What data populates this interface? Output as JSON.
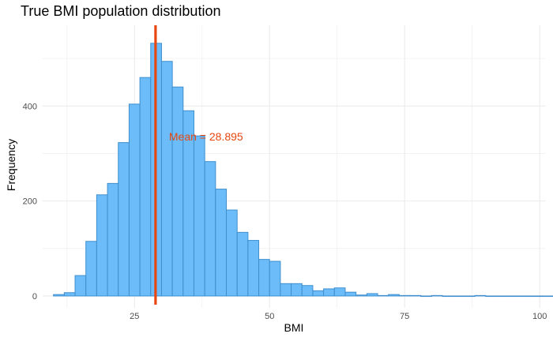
{
  "chart_data": {
    "type": "bar",
    "title": "True BMI population distribution",
    "xlabel": "BMI",
    "ylabel": "Frequency",
    "xlim": [
      8,
      101
    ],
    "ylim": [
      -25,
      570
    ],
    "x_ticks": [
      25,
      50,
      75,
      100
    ],
    "y_ticks": [
      0,
      200,
      400
    ],
    "grid": true,
    "bin_width": 2,
    "bin_start": 10,
    "values": [
      3,
      7,
      43,
      115,
      213,
      237,
      323,
      404,
      460,
      532,
      494,
      440,
      390,
      337,
      283,
      225,
      181,
      134,
      117,
      77,
      73,
      26,
      26,
      22,
      11,
      15,
      17,
      8,
      2,
      5,
      1,
      3,
      1,
      1,
      0,
      1,
      0,
      0,
      0,
      1,
      0,
      0,
      0,
      0,
      0,
      0,
      0,
      0,
      1,
      0,
      0,
      0,
      0,
      0,
      0,
      0,
      0,
      0,
      1,
      0,
      0,
      0,
      0,
      0,
      1
    ],
    "bar_fill": "#6bbcf9",
    "bar_stroke": "#3f8fcf",
    "mean": {
      "value": 28.895,
      "label": "Mean = 28.895",
      "color": "#e8470f"
    }
  }
}
